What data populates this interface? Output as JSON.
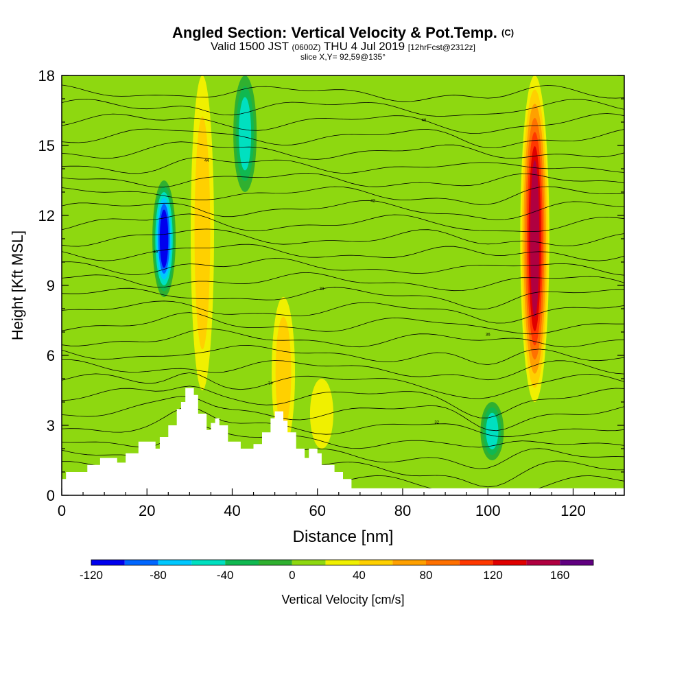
{
  "title": {
    "main": "Angled Section: Vertical Velocity & Pot.Temp.",
    "main_suffix": "(C)",
    "valid_a": "Valid 1500 JST",
    "valid_b": "(0600Z)",
    "valid_c": "THU 4 Jul 2019",
    "valid_d": "[12hrFcst@2312z]",
    "slice": "slice X,Y= 92,59@135°"
  },
  "chart_data": {
    "type": "heatmap",
    "xlabel": "Distance [nm]",
    "ylabel": "Height [Kft MSL]",
    "xlim": [
      0,
      132
    ],
    "ylim": [
      0,
      18
    ],
    "x_ticks": [
      0,
      20,
      40,
      60,
      80,
      100,
      120
    ],
    "y_ticks": [
      0,
      3,
      6,
      9,
      12,
      15,
      18
    ],
    "colorbar": {
      "label": "Vertical Velocity [cm/s]",
      "ticks": [
        -120,
        -80,
        -40,
        0,
        40,
        80,
        120,
        160
      ],
      "levels": [
        -120,
        -100,
        -80,
        -60,
        -40,
        -20,
        0,
        20,
        40,
        60,
        80,
        100,
        120,
        140,
        160,
        180
      ],
      "colors": [
        "#0000ee",
        "#0066ff",
        "#00c8ff",
        "#00e0c0",
        "#10b850",
        "#30b030",
        "#8ed810",
        "#f0f000",
        "#ffd000",
        "#ffa000",
        "#ff7000",
        "#ff3800",
        "#e00000",
        "#b00040",
        "#600080"
      ]
    },
    "terrain_profile": [
      [
        0,
        0.7
      ],
      [
        1,
        1.0
      ],
      [
        6,
        1.3
      ],
      [
        9,
        1.6
      ],
      [
        13,
        1.4
      ],
      [
        15,
        1.8
      ],
      [
        18,
        2.3
      ],
      [
        22,
        2.0
      ],
      [
        23,
        2.5
      ],
      [
        24,
        2.5
      ],
      [
        25,
        3.0
      ],
      [
        27,
        3.7
      ],
      [
        28,
        4.0
      ],
      [
        29,
        4.6
      ],
      [
        31,
        4.3
      ],
      [
        32,
        3.5
      ],
      [
        34,
        2.8
      ],
      [
        35,
        3.1
      ],
      [
        36,
        3.3
      ],
      [
        37,
        3.0
      ],
      [
        39,
        2.3
      ],
      [
        42,
        2.0
      ],
      [
        45,
        2.2
      ],
      [
        47,
        2.7
      ],
      [
        49,
        3.3
      ],
      [
        50,
        3.6
      ],
      [
        52,
        3.2
      ],
      [
        53,
        2.7
      ],
      [
        55,
        2.0
      ],
      [
        57,
        1.6
      ],
      [
        58,
        2.0
      ],
      [
        60,
        1.8
      ],
      [
        61,
        1.3
      ],
      [
        64,
        1.0
      ],
      [
        66,
        0.7
      ],
      [
        68,
        0.3
      ],
      [
        72,
        0.3
      ],
      [
        132,
        0.3
      ]
    ],
    "features": [
      {
        "kind": "updraft",
        "x": 111,
        "y_from": 4.0,
        "y_to": 18.0,
        "max_w": 160
      },
      {
        "kind": "updraft",
        "x": 33,
        "y_from": 4.5,
        "y_to": 18.0,
        "max_w": 60
      },
      {
        "kind": "updraft",
        "x": 52,
        "y_from": 2.0,
        "y_to": 8.5,
        "max_w": 60
      },
      {
        "kind": "updraft",
        "x": 61,
        "y_from": 2.0,
        "y_to": 5.0,
        "max_w": 40
      },
      {
        "kind": "downdraft",
        "x": 24,
        "y_from": 8.5,
        "y_to": 13.5,
        "min_w": -120
      },
      {
        "kind": "downdraft",
        "x": 43,
        "y_from": 13.0,
        "y_to": 18.0,
        "min_w": -60
      },
      {
        "kind": "downdraft",
        "x": 101,
        "y_from": 1.5,
        "y_to": 4.0,
        "min_w": -60
      }
    ],
    "isentrope_labels": [
      "30",
      "32",
      "34",
      "36",
      "38",
      "40",
      "42",
      "44",
      "46",
      "48"
    ]
  }
}
